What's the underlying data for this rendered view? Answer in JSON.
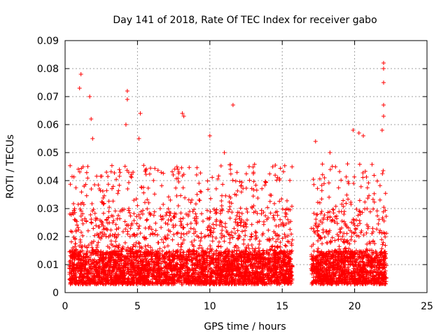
{
  "chart_data": {
    "type": "scatter",
    "title": "Day 141 of 2018, Rate Of TEC Index for receiver gabo",
    "xlabel": "GPS time / hours",
    "ylabel": "ROTI / TECUs",
    "xlim": [
      0,
      25
    ],
    "ylim": [
      0,
      0.09
    ],
    "xticks": [
      "0",
      "5",
      "10",
      "15",
      "20",
      "25"
    ],
    "yticks": [
      "0",
      "0.01",
      "0.02",
      "0.03",
      "0.04",
      "0.05",
      "0.06",
      "0.07",
      "0.08",
      "0.09"
    ],
    "grid": true,
    "marker": "+",
    "color": "#ff0000",
    "data_gap_hours": [
      15.8,
      16.9
    ],
    "segments": [
      {
        "x_range": [
          0.3,
          15.7
        ],
        "typical_range": [
          0.003,
          0.03
        ]
      },
      {
        "x_range": [
          17.0,
          22.2
        ],
        "typical_range": [
          0.003,
          0.03
        ]
      }
    ],
    "notable_points": [
      {
        "x": 1.1,
        "y": 0.078
      },
      {
        "x": 1.0,
        "y": 0.073
      },
      {
        "x": 1.7,
        "y": 0.07
      },
      {
        "x": 1.8,
        "y": 0.062
      },
      {
        "x": 1.9,
        "y": 0.055
      },
      {
        "x": 4.3,
        "y": 0.072
      },
      {
        "x": 4.3,
        "y": 0.069
      },
      {
        "x": 4.2,
        "y": 0.06
      },
      {
        "x": 5.2,
        "y": 0.064
      },
      {
        "x": 5.1,
        "y": 0.055
      },
      {
        "x": 8.1,
        "y": 0.064
      },
      {
        "x": 8.2,
        "y": 0.063
      },
      {
        "x": 10.0,
        "y": 0.056
      },
      {
        "x": 11.6,
        "y": 0.067
      },
      {
        "x": 11.0,
        "y": 0.05
      },
      {
        "x": 17.3,
        "y": 0.054
      },
      {
        "x": 18.3,
        "y": 0.05
      },
      {
        "x": 19.9,
        "y": 0.058
      },
      {
        "x": 20.3,
        "y": 0.057
      },
      {
        "x": 20.6,
        "y": 0.056
      },
      {
        "x": 22.0,
        "y": 0.082
      },
      {
        "x": 22.0,
        "y": 0.08
      },
      {
        "x": 22.0,
        "y": 0.075
      },
      {
        "x": 22.0,
        "y": 0.067
      },
      {
        "x": 22.0,
        "y": 0.063
      },
      {
        "x": 21.9,
        "y": 0.058
      }
    ]
  }
}
